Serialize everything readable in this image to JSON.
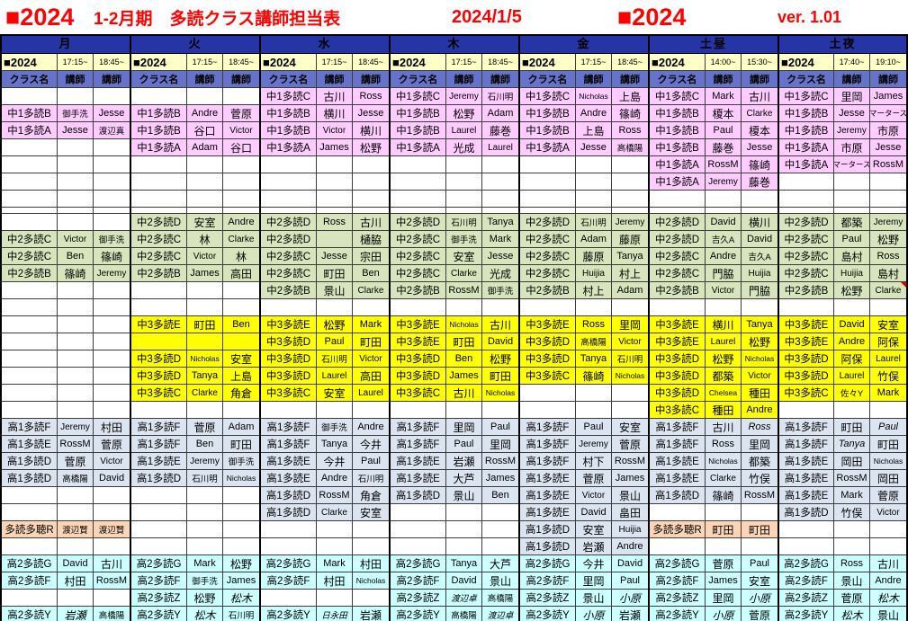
{
  "title": {
    "year_badge": "■2024",
    "heading": "1-2月期　多読クラス講師担当表",
    "date": "2024/1/5",
    "year_badge2": "■2024",
    "version": "ver. 1.01"
  },
  "column_headers": {
    "class": "クラス名",
    "teacher": "講師"
  },
  "section_colors": {
    "p": "#ffccff",
    "g": "#d7e4bc",
    "y": "#ffff00",
    "b": "#dbe5f1",
    "o": "#fbd5b5",
    "c": "#ccffff"
  },
  "accent_colors": {
    "title_red": "#ff0000",
    "day_header_blue": "#2635a6",
    "col_header_blue": "#6673cb",
    "time_header_yellow": "#ffffc6"
  },
  "days": [
    {
      "name": "月",
      "year_label": "■2024",
      "times": [
        "17:15~",
        "18:45~"
      ],
      "rows": [
        [],
        [
          "p",
          "中1多読B",
          "御手洗",
          "Jesse"
        ],
        [
          "p",
          "中1多読A",
          "Jesse",
          "渡辺真"
        ],
        [],
        [],
        [],
        [],
        [],
        [
          "g",
          "中2多読C",
          "Victor",
          "御手洗"
        ],
        [
          "g",
          "中2多読C",
          "Ben",
          "篠崎"
        ],
        [
          "g",
          "中2多読B",
          "篠崎",
          "Jeremy"
        ],
        [],
        [],
        [],
        [],
        [],
        [],
        [],
        [],
        [
          "b",
          "高1多読F",
          "Jeremy",
          "村田"
        ],
        [
          "b",
          "高1多読E",
          "RossM",
          "菅原"
        ],
        [
          "b",
          "高1多読D",
          "菅原",
          "Victor"
        ],
        [
          "b",
          "高1多読D",
          "高橋陽",
          "David"
        ],
        [],
        [],
        [
          "o",
          "多読多聴R",
          "渡辺賢",
          "渡辺賢"
        ],
        [],
        [
          "c",
          "高2多読G",
          "David",
          "古川"
        ],
        [
          "c",
          "高2多読F",
          "村田",
          "RossM"
        ],
        [],
        [
          "c",
          "高2多読Y",
          "岩瀬",
          "高橋陽",
          "ai"
        ]
      ]
    },
    {
      "name": "火",
      "year_label": "■2024",
      "times": [
        "17:15~",
        "18:45~"
      ],
      "rows": [
        [],
        [
          "p",
          "中1多読B",
          "Andre",
          "菅原"
        ],
        [
          "p",
          "中1多読B",
          "谷口",
          "Victor"
        ],
        [
          "p",
          "中1多読A",
          "Adam",
          "谷口"
        ],
        [],
        [],
        [],
        [
          "g",
          "中2多読D",
          "安室",
          "Andre"
        ],
        [
          "g",
          "中2多読C",
          "林",
          "Clarke"
        ],
        [
          "g",
          "中2多読C",
          "Victor",
          "林"
        ],
        [
          "g",
          "中2多読B",
          "James",
          "高田"
        ],
        [],
        [],
        [
          "y",
          "中3多読E",
          "町田",
          "Ben"
        ],
        [
          "y",
          "",
          "",
          ""
        ],
        [
          "y",
          "中3多読D",
          "Nicholas",
          "安室"
        ],
        [
          "y",
          "中3多読D",
          "Tanya",
          "上島"
        ],
        [
          "y",
          "中3多読C",
          "Clarke",
          "角倉"
        ],
        [],
        [
          "b",
          "高1多読F",
          "菅原",
          "Adam"
        ],
        [
          "b",
          "高1多読F",
          "Ben",
          "町田"
        ],
        [
          "b",
          "高1多読E",
          "Jeremy",
          "御手洗"
        ],
        [
          "b",
          "高1多読D",
          "石川明",
          "Nicholas"
        ],
        [],
        [],
        [],
        [],
        [
          "c",
          "高2多読G",
          "Mark",
          "松野"
        ],
        [
          "c",
          "高2多読F",
          "御手洗",
          "James"
        ],
        [
          "c",
          "高2多読Z",
          "松野",
          "松木",
          "bi"
        ],
        [
          "c",
          "高2多読Y",
          "松木",
          "石川明",
          "ai"
        ]
      ]
    },
    {
      "name": "水",
      "year_label": "■2024",
      "times": [
        "17:15~",
        "18:45~"
      ],
      "rows": [
        [
          "p",
          "中1多読C",
          "古川",
          "Ross"
        ],
        [
          "p",
          "中1多読B",
          "横川",
          "Jesse"
        ],
        [
          "p",
          "中1多読B",
          "Victor",
          "横川"
        ],
        [
          "p",
          "中1多読A",
          "James",
          "松野"
        ],
        [],
        [],
        [],
        [
          "g",
          "中2多読D",
          "Ross",
          "古川"
        ],
        [
          "g",
          "中2多読D",
          "",
          "樋脇"
        ],
        [
          "g",
          "中2多読C",
          "Jesse",
          "宗田"
        ],
        [
          "g",
          "中2多読C",
          "町田",
          "Ben"
        ],
        [
          "g",
          "中2多読B",
          "景山",
          "Clarke"
        ],
        [],
        [
          "y",
          "中3多読E",
          "松野",
          "Mark"
        ],
        [
          "y",
          "中3多読D",
          "Paul",
          "町田"
        ],
        [
          "y",
          "中3多読D",
          "石川明",
          "Victor"
        ],
        [
          "y",
          "中3多読D",
          "Laurel",
          "高田"
        ],
        [
          "y",
          "中3多読C",
          "安室",
          "Laurel"
        ],
        [],
        [
          "b",
          "高1多読F",
          "御手洗",
          "Andre"
        ],
        [
          "b",
          "高1多読F",
          "Tanya",
          "今井"
        ],
        [
          "b",
          "高1多読E",
          "今井",
          "Paul"
        ],
        [
          "b",
          "高1多読E",
          "Andre",
          "石川明"
        ],
        [
          "b",
          "高1多読D",
          "RossM",
          "角倉"
        ],
        [
          "b",
          "高1多読D",
          "Clarke",
          "安室"
        ],
        [],
        [],
        [
          "c",
          "高2多読G",
          "Mark",
          "村田"
        ],
        [
          "c",
          "高2多読F",
          "村田",
          "Nicholas"
        ],
        [],
        [
          "c",
          "高2多読Y",
          "日永田",
          "岩瀬",
          "ai"
        ]
      ]
    },
    {
      "name": "木",
      "year_label": "■2024",
      "times": [
        "17:15~",
        "18:45~"
      ],
      "rows": [
        [
          "p",
          "中1多読C",
          "Jeremy",
          "石川明"
        ],
        [
          "p",
          "中1多読B",
          "松野",
          "Adam"
        ],
        [
          "p",
          "中1多読B",
          "Laurel",
          "藤巻"
        ],
        [
          "p",
          "中1多読A",
          "光成",
          "Laurel"
        ],
        [],
        [],
        [],
        [
          "g",
          "中2多読D",
          "石川明",
          "Tanya"
        ],
        [
          "g",
          "中2多読C",
          "御手洗",
          "Mark"
        ],
        [
          "g",
          "中2多読C",
          "安室",
          "Jesse"
        ],
        [
          "g",
          "中2多読C",
          "Clarke",
          "光成"
        ],
        [
          "g",
          "中2多読B",
          "RossM",
          "御手洗"
        ],
        [],
        [
          "y",
          "中3多読E",
          "Nicholas",
          "古川"
        ],
        [
          "y",
          "中3多読E",
          "町田",
          "David"
        ],
        [
          "y",
          "中3多読D",
          "Ben",
          "松野"
        ],
        [
          "y",
          "中3多読D",
          "James",
          "町田"
        ],
        [
          "y",
          "中3多読C",
          "古川",
          "Nicholas"
        ],
        [],
        [
          "b",
          "高1多読F",
          "里岡",
          "Paul"
        ],
        [
          "b",
          "高1多読F",
          "Paul",
          "里岡"
        ],
        [
          "b",
          "高1多読E",
          "岩瀬",
          "RossM"
        ],
        [
          "b",
          "高1多読E",
          "大芦",
          "James"
        ],
        [
          "b",
          "高1多読D",
          "景山",
          "Ben"
        ],
        [],
        [],
        [],
        [
          "c",
          "高2多読G",
          "Tanya",
          "大芦"
        ],
        [
          "c",
          "高2多読F",
          "David",
          "景山"
        ],
        [
          "c",
          "高2多読Z",
          "渡辺卓",
          "高橋陽",
          "ai"
        ],
        [
          "c",
          "高2多読Y",
          "高橋陽",
          "渡辺卓",
          "bi"
        ]
      ]
    },
    {
      "name": "金",
      "year_label": "■2024",
      "times": [
        "17:15~",
        "18:45~"
      ],
      "rows": [
        [
          "p",
          "中1多読C",
          "Nicholas",
          "上島"
        ],
        [
          "p",
          "中1多読B",
          "Andre",
          "篠崎"
        ],
        [
          "p",
          "中1多読B",
          "上島",
          "Ross"
        ],
        [
          "p",
          "中1多読A",
          "Jesse",
          "高橋陽"
        ],
        [],
        [],
        [],
        [
          "g",
          "中2多読D",
          "石川明",
          "Jeremy"
        ],
        [
          "g",
          "中2多読C",
          "Adam",
          "藤原"
        ],
        [
          "g",
          "中2多読C",
          "藤原",
          "Tanya"
        ],
        [
          "g",
          "中2多読C",
          "Huijia",
          "村上"
        ],
        [
          "g",
          "中2多読B",
          "村上",
          "Adam"
        ],
        [],
        [
          "y",
          "中3多読E",
          "Ross",
          "里岡"
        ],
        [
          "y",
          "中3多読D",
          "高橋陽",
          "Victor"
        ],
        [
          "y",
          "中3多読D",
          "Tanya",
          "石川明"
        ],
        [
          "y",
          "中3多読C",
          "篠崎",
          "Nicholas"
        ],
        [],
        [],
        [
          "b",
          "高1多読F",
          "Paul",
          "安室"
        ],
        [
          "b",
          "高1多読F",
          "Jeremy",
          "菅原"
        ],
        [
          "b",
          "高1多読F",
          "村下",
          "RossM"
        ],
        [
          "b",
          "高1多読E",
          "菅原",
          "James"
        ],
        [
          "b",
          "高1多読E",
          "Victor",
          "景山"
        ],
        [
          "b",
          "高1多読E",
          "David",
          "畠田"
        ],
        [
          "b",
          "高1多読D",
          "安室",
          "Huijia"
        ],
        [
          "b",
          "高1多読D",
          "岩瀬",
          "Andre"
        ],
        [
          "c",
          "高2多読G",
          "今井",
          "David"
        ],
        [
          "c",
          "高2多読F",
          "里岡",
          "Paul"
        ],
        [
          "c",
          "高2多読Z",
          "景山",
          "小原",
          "bi"
        ],
        [
          "c",
          "高2多読Y",
          "小原",
          "岩瀬",
          "ai"
        ]
      ]
    },
    {
      "name": "土昼",
      "year_label": "■2024",
      "times": [
        "14:00~",
        "15:30~"
      ],
      "rows": [
        [
          "p",
          "中1多読C",
          "Mark",
          "古川"
        ],
        [
          "p",
          "中1多読B",
          "榎本",
          "Clarke"
        ],
        [
          "p",
          "中1多読B",
          "Paul",
          "榎本"
        ],
        [
          "p",
          "中1多読B",
          "藤巻",
          "Jesse"
        ],
        [
          "p",
          "中1多読A",
          "RossM",
          "篠崎"
        ],
        [
          "p",
          "中1多読A",
          "Jeremy",
          "藤巻"
        ],
        [],
        [
          "g",
          "中2多読D",
          "David",
          "横川"
        ],
        [
          "g",
          "中2多読D",
          "吉久A",
          "David"
        ],
        [
          "g",
          "中2多読C",
          "Andre",
          "吉久A"
        ],
        [
          "g",
          "中2多読C",
          "門脇",
          "Huijia"
        ],
        [
          "g",
          "中2多読B",
          "Victor",
          "門脇"
        ],
        [],
        [
          "y",
          "中3多読E",
          "横川",
          "Tanya"
        ],
        [
          "y",
          "中3多読E",
          "Laurel",
          "松野"
        ],
        [
          "y",
          "中3多読D",
          "松野",
          "Nicholas"
        ],
        [
          "y",
          "中3多読D",
          "都築",
          "Victor"
        ],
        [
          "y",
          "中3多読D",
          "Chelsea",
          "種田"
        ],
        [
          "y",
          "中3多読C",
          "種田",
          "Andre"
        ],
        [
          "b",
          "高1多読F",
          "古川",
          "Ross",
          "bi"
        ],
        [
          "b",
          "高1多読F",
          "Ross",
          "里岡"
        ],
        [
          "b",
          "高1多読E",
          "Nicholas",
          "都築"
        ],
        [
          "b",
          "高1多読E",
          "Clarke",
          "竹俣"
        ],
        [
          "b",
          "高1多読D",
          "篠崎",
          "RossM"
        ],
        [],
        [
          "o",
          "多読多聴R",
          "町田",
          "町田"
        ],
        [],
        [
          "c",
          "高2多読G",
          "菅原",
          "Paul"
        ],
        [
          "c",
          "高2多読F",
          "James",
          "安室"
        ],
        [
          "c",
          "高2多読Z",
          "里岡",
          "小原",
          "bi"
        ],
        [
          "c",
          "高2多読Y",
          "小原",
          "菅原",
          "ai"
        ]
      ]
    },
    {
      "name": "土夜",
      "year_label": "■2024",
      "times": [
        "17:40~",
        "19:10~"
      ],
      "rows": [
        [
          "p",
          "中1多読C",
          "里岡",
          "James"
        ],
        [
          "p",
          "中1多読B",
          "Jesse",
          "マータース"
        ],
        [
          "p",
          "中1多読B",
          "Jeremy",
          "市原"
        ],
        [
          "p",
          "中1多読A",
          "市原",
          "Jesse"
        ],
        [
          "p",
          "中1多読A",
          "マータース",
          "RossM"
        ],
        [],
        [],
        [
          "g",
          "中2多読D",
          "都築",
          "Jeremy"
        ],
        [
          "g",
          "中2多読C",
          "Paul",
          "松野"
        ],
        [
          "g",
          "中2多読C",
          "島村",
          "Ross"
        ],
        [
          "g",
          "中2多読C",
          "Huijia",
          "島村"
        ],
        [
          "g",
          "中2多読B",
          "松野",
          "Clarke",
          "nb"
        ],
        [],
        [
          "y",
          "中3多読E",
          "David",
          "安室"
        ],
        [
          "y",
          "中3多読E",
          "Andre",
          "阿保"
        ],
        [
          "y",
          "中3多読D",
          "阿保",
          "Laurel"
        ],
        [
          "y",
          "中3多読D",
          "Laurel",
          "竹俣"
        ],
        [
          "y",
          "中3多読C",
          "佐々Y",
          "Mark"
        ],
        [],
        [
          "b",
          "高1多読F",
          "町田",
          "Paul",
          "bi"
        ],
        [
          "b",
          "高1多読F",
          "Tanya",
          "町田",
          "ai"
        ],
        [
          "b",
          "高1多読E",
          "岡田",
          "Nicholas"
        ],
        [
          "b",
          "高1多読E",
          "RossM",
          "岡田"
        ],
        [
          "b",
          "高1多読E",
          "Mark",
          "菅原"
        ],
        [
          "b",
          "高1多読D",
          "竹俣",
          "Victor"
        ],
        [],
        [],
        [
          "c",
          "高2多読G",
          "Ross",
          "古川"
        ],
        [
          "c",
          "高2多読F",
          "景山",
          "Andre"
        ],
        [
          "c",
          "高2多読Z",
          "菅原",
          "松木",
          "bi"
        ],
        [
          "c",
          "高2多読Y",
          "松木",
          "景山",
          "ai"
        ]
      ]
    }
  ]
}
